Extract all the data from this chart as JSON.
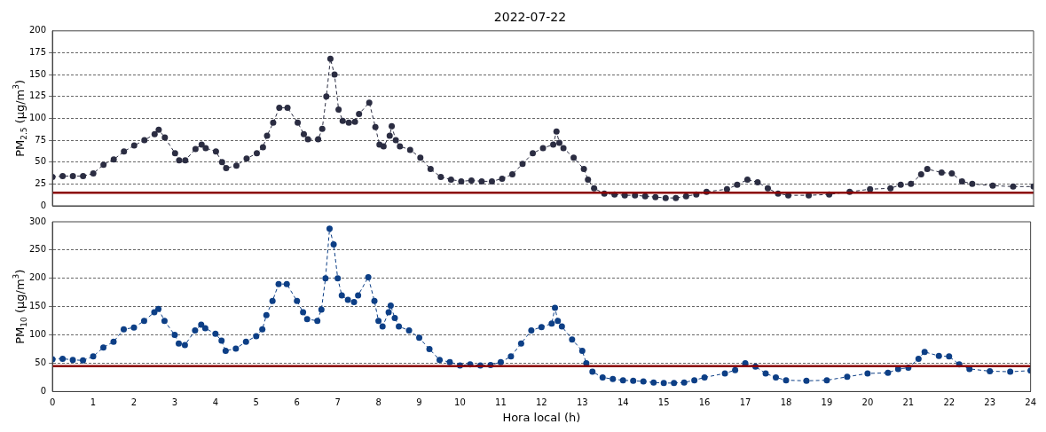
{
  "chart_data": [
    {
      "type": "line",
      "title": "2022-07-22",
      "ylabel": "PM$_{2.5}$ (μg/m$^{3}$)",
      "marker": "circle",
      "line_style": "dashed",
      "grid": "y",
      "tick_labels": "y",
      "legend": false,
      "xlim": [
        0,
        24
      ],
      "xticks": [
        0,
        1,
        2,
        3,
        4,
        5,
        6,
        7,
        8,
        9,
        10,
        11,
        12,
        13,
        14,
        15,
        16,
        17,
        18,
        19,
        20,
        21,
        22,
        23,
        24
      ],
      "ylim": [
        0,
        200
      ],
      "yticks": [
        0,
        25,
        50,
        75,
        100,
        125,
        150,
        175,
        200
      ],
      "x": [
        0,
        0.25,
        0.5,
        0.75,
        1,
        1.25,
        1.5,
        1.75,
        2,
        2.25,
        2.5,
        2.6,
        2.75,
        3,
        3.1,
        3.25,
        3.5,
        3.65,
        3.75,
        4,
        4.15,
        4.25,
        4.5,
        4.75,
        5,
        5.15,
        5.25,
        5.4,
        5.55,
        5.75,
        6,
        6.15,
        6.25,
        6.5,
        6.6,
        6.7,
        6.8,
        6.9,
        7,
        7.1,
        7.25,
        7.4,
        7.5,
        7.75,
        7.9,
        8,
        8.1,
        8.25,
        8.3,
        8.4,
        8.5,
        8.75,
        9,
        9.25,
        9.5,
        9.75,
        10,
        10.25,
        10.5,
        10.75,
        11,
        11.25,
        11.5,
        11.75,
        12,
        12.25,
        12.33,
        12.4,
        12.5,
        12.75,
        13,
        13.1,
        13.25,
        13.5,
        13.75,
        14,
        14.25,
        14.5,
        14.75,
        15,
        15.25,
        15.5,
        15.75,
        16,
        16.5,
        16.75,
        17,
        17.25,
        17.5,
        17.75,
        18,
        18.5,
        19,
        19.5,
        20,
        20.5,
        20.75,
        21,
        21.25,
        21.4,
        21.75,
        22,
        22.25,
        22.5,
        23,
        23.5,
        24
      ],
      "series": [
        {
          "color": "#2b2d42",
          "values": [
            33,
            34,
            34,
            34,
            37,
            47,
            53,
            62,
            69,
            75,
            82,
            87,
            78,
            60,
            52,
            52,
            65,
            70,
            66,
            62,
            50,
            43,
            46,
            54,
            60,
            67,
            80,
            95,
            112,
            112,
            95,
            82,
            76,
            76,
            88,
            125,
            168,
            150,
            110,
            97,
            95,
            96,
            105,
            118,
            90,
            70,
            68,
            80,
            91,
            75,
            68,
            64,
            55,
            42,
            33,
            30,
            28,
            29,
            28,
            28,
            31,
            36,
            48,
            60,
            66,
            70,
            85,
            72,
            66,
            55,
            42,
            30,
            20,
            14,
            13,
            12,
            12,
            11,
            10,
            9,
            9,
            11,
            13,
            16,
            19,
            24,
            30,
            27,
            20,
            14,
            12,
            12,
            13,
            16,
            19,
            20,
            24,
            25,
            36,
            42,
            38,
            37,
            28,
            25,
            23,
            22,
            22
          ]
        }
      ],
      "ref_lines": [
        {
          "axis": "y",
          "value": 15,
          "color": "#8b0000"
        }
      ]
    },
    {
      "type": "line",
      "xlabel": "Hora local (h)",
      "ylabel": "PM$_{10}$ (μg/m$^{3}$)",
      "marker": "circle",
      "line_style": "dashed",
      "grid": "y",
      "legend": false,
      "xlim": [
        0,
        24
      ],
      "xticks": [
        0,
        1,
        2,
        3,
        4,
        5,
        6,
        7,
        8,
        9,
        10,
        11,
        12,
        13,
        14,
        15,
        16,
        17,
        18,
        19,
        20,
        21,
        22,
        23,
        24
      ],
      "ylim": [
        0,
        300
      ],
      "yticks": [
        0,
        50,
        100,
        150,
        200,
        250,
        300
      ],
      "x": [
        0,
        0.25,
        0.5,
        0.75,
        1,
        1.25,
        1.5,
        1.75,
        2,
        2.25,
        2.5,
        2.6,
        2.75,
        3,
        3.1,
        3.25,
        3.5,
        3.65,
        3.75,
        4,
        4.15,
        4.25,
        4.5,
        4.75,
        5,
        5.15,
        5.25,
        5.4,
        5.55,
        5.75,
        6,
        6.15,
        6.25,
        6.5,
        6.6,
        6.7,
        6.8,
        6.9,
        7,
        7.1,
        7.25,
        7.4,
        7.5,
        7.75,
        7.9,
        8,
        8.1,
        8.25,
        8.3,
        8.4,
        8.5,
        8.75,
        9,
        9.25,
        9.5,
        9.75,
        10,
        10.25,
        10.5,
        10.75,
        11,
        11.25,
        11.5,
        11.75,
        12,
        12.25,
        12.33,
        12.4,
        12.5,
        12.75,
        13,
        13.1,
        13.25,
        13.5,
        13.75,
        14,
        14.25,
        14.5,
        14.75,
        15,
        15.25,
        15.5,
        15.75,
        16,
        16.5,
        16.75,
        17,
        17.25,
        17.5,
        17.75,
        18,
        18.5,
        19,
        19.5,
        20,
        20.5,
        20.75,
        21,
        21.25,
        21.4,
        21.75,
        22,
        22.25,
        22.5,
        23,
        23.5,
        24
      ],
      "series": [
        {
          "color": "#0d3f86",
          "values": [
            57,
            58,
            56,
            55,
            62,
            78,
            88,
            110,
            113,
            125,
            140,
            146,
            125,
            100,
            85,
            82,
            108,
            118,
            112,
            102,
            90,
            72,
            76,
            88,
            98,
            110,
            135,
            160,
            190,
            190,
            160,
            140,
            128,
            125,
            145,
            200,
            288,
            260,
            200,
            170,
            162,
            158,
            170,
            202,
            160,
            125,
            115,
            140,
            152,
            130,
            115,
            108,
            95,
            75,
            56,
            52,
            46,
            48,
            46,
            47,
            52,
            62,
            85,
            108,
            114,
            120,
            148,
            125,
            115,
            92,
            72,
            50,
            35,
            25,
            22,
            20,
            19,
            18,
            16,
            15,
            15,
            16,
            20,
            25,
            32,
            38,
            50,
            44,
            32,
            25,
            20,
            19,
            20,
            26,
            32,
            33,
            40,
            42,
            58,
            70,
            63,
            62,
            48,
            40,
            36,
            35,
            37
          ]
        }
      ],
      "ref_lines": [
        {
          "axis": "y",
          "value": 45,
          "color": "#8b0000"
        }
      ]
    }
  ]
}
